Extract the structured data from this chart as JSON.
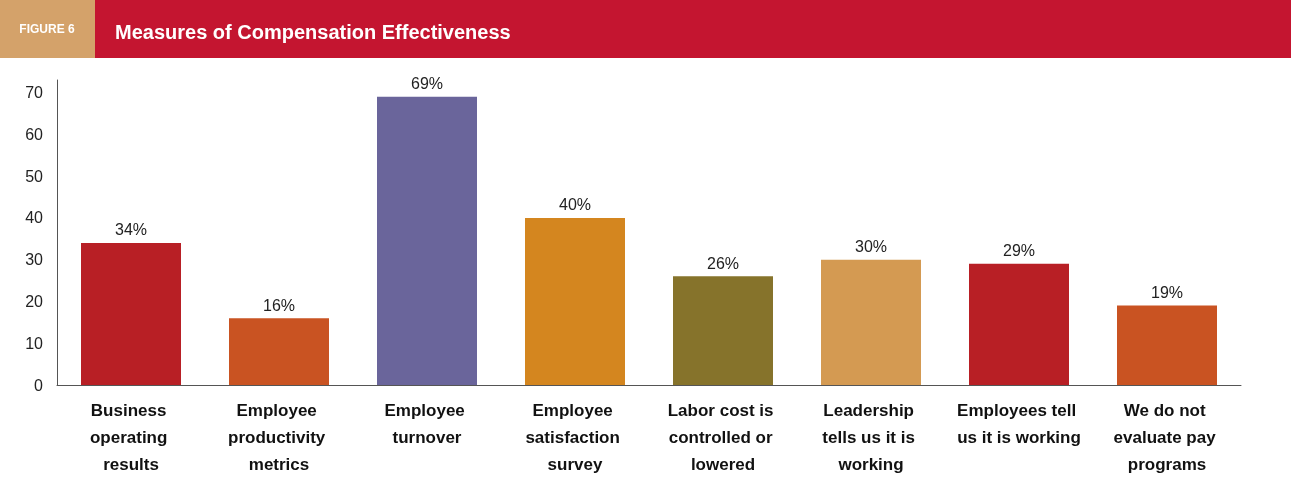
{
  "chart_data": {
    "type": "bar",
    "title": "Measures of Compensation Effectiveness",
    "annotations": [
      "FIGURE 6"
    ],
    "categories": [
      "Business operating results",
      "Employee productivity metrics",
      "Employee turnover",
      "Employee satisfaction survey",
      "Labor cost is controlled or lowered",
      "Leadership tells us it is working",
      "Employees tell us it is working",
      "We do not evaluate pay programs"
    ],
    "values": [
      34,
      16,
      69,
      40,
      26,
      30,
      29,
      19
    ],
    "value_labels": [
      "34%",
      "16%",
      "69%",
      "40%",
      "26%",
      "30%",
      "29%",
      "19%"
    ],
    "colors": [
      "#b81f25",
      "#c95322",
      "#6a659b",
      "#d4861f",
      "#86732b",
      "#d49a52",
      "#b81f25",
      "#c95322"
    ],
    "ylim": [
      0,
      73
    ],
    "yticks": [
      0,
      10,
      20,
      30,
      40,
      50,
      60,
      70
    ],
    "grid": false
  }
}
